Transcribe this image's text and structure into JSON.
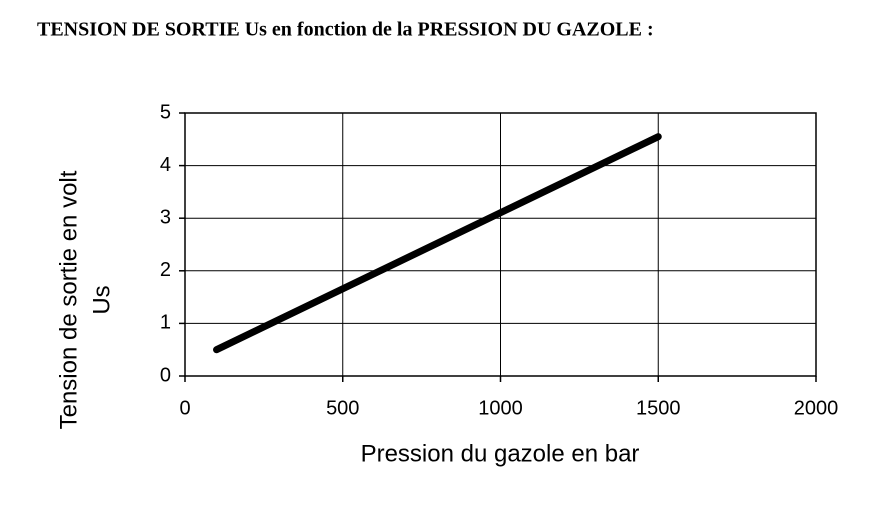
{
  "chart_data": {
    "type": "line",
    "title": "TENSION DE SORTIE Us en fonction de la PRESSION DU GAZOLE :",
    "xlabel": "Pression du gazole en bar",
    "ylabel": [
      "Tension de sortie en volt",
      "Us"
    ],
    "x": [
      100,
      1500
    ],
    "series": [
      {
        "name": "Us",
        "color": "#000000",
        "values": [
          0.5,
          4.55
        ]
      }
    ],
    "xlim": [
      0,
      2000
    ],
    "xticks": [
      0,
      500,
      1000,
      1500,
      2000
    ],
    "ylim": [
      0,
      5
    ],
    "yticks": [
      0,
      1,
      2,
      3,
      4,
      5
    ],
    "grid": true
  }
}
